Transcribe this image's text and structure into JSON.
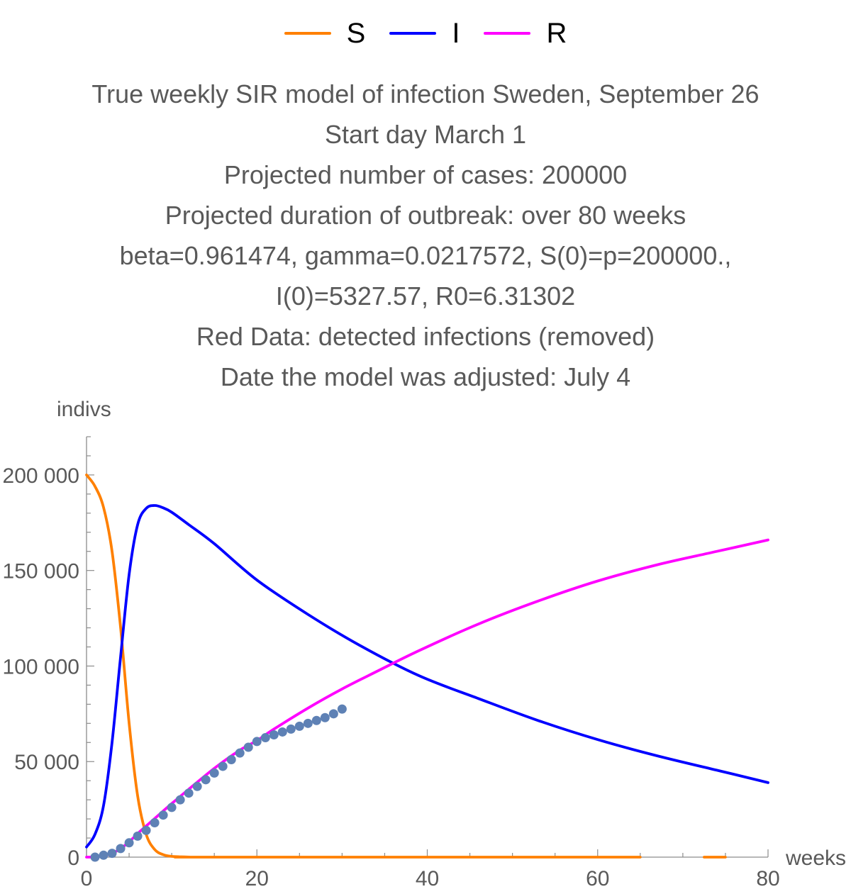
{
  "legend": [
    {
      "label": "S",
      "color": "#ff8000"
    },
    {
      "label": "I",
      "color": "#0000ff"
    },
    {
      "label": "R",
      "color": "#ff00ff"
    }
  ],
  "title_lines": [
    "True weekly SIR model of infection Sweden, September 26",
    "Start day March 1",
    "Projected number of cases: 200000",
    "Projected duration of outbreak: over 80 weeks",
    "beta=0.961474, gamma=0.0217572, S(0)=p=200000.,",
    "I(0)=5327.57, R0=6.31302",
    "Red Data: detected infections (removed)",
    "Date the model was adjusted: July 4"
  ],
  "chart_data": {
    "type": "line",
    "xlabel": "weeks",
    "ylabel": "indivs",
    "xlim": [
      0,
      80
    ],
    "ylim": [
      0,
      220000
    ],
    "x_ticks": [
      0,
      20,
      40,
      60,
      80
    ],
    "x_tick_labels": [
      "0",
      "20",
      "40",
      "60",
      "80"
    ],
    "y_ticks": [
      0,
      50000,
      100000,
      150000,
      200000
    ],
    "y_tick_labels": [
      "0",
      "50 000",
      "100 000",
      "150 000",
      "200 000"
    ],
    "legend_position": "top",
    "grid": false,
    "series": [
      {
        "name": "S",
        "color": "#ff8000",
        "points": [
          [
            0,
            200000
          ],
          [
            1,
            194000
          ],
          [
            2,
            183000
          ],
          [
            3,
            160000
          ],
          [
            4,
            120000
          ],
          [
            5,
            70000
          ],
          [
            6,
            32000
          ],
          [
            7,
            12000
          ],
          [
            8,
            4000
          ],
          [
            9,
            1300
          ],
          [
            10,
            400
          ],
          [
            12,
            50
          ],
          [
            15,
            0
          ],
          [
            65,
            0
          ]
        ]
      },
      {
        "name": "S",
        "color": "#ff8000",
        "points": [
          [
            72.5,
            0
          ],
          [
            75,
            0
          ]
        ]
      },
      {
        "name": "I",
        "color": "#0000ff",
        "points": [
          [
            0,
            5300
          ],
          [
            1,
            12000
          ],
          [
            2,
            27000
          ],
          [
            3,
            60000
          ],
          [
            4,
            105000
          ],
          [
            5,
            148000
          ],
          [
            6,
            174000
          ],
          [
            7,
            182500
          ],
          [
            8,
            184000
          ],
          [
            9,
            182800
          ],
          [
            10,
            180500
          ],
          [
            12,
            174000
          ],
          [
            15,
            164000
          ],
          [
            20,
            145000
          ],
          [
            26,
            127000
          ],
          [
            32,
            111000
          ],
          [
            39,
            95000
          ],
          [
            46,
            83000
          ],
          [
            53,
            71500
          ],
          [
            60,
            61500
          ],
          [
            67,
            53000
          ],
          [
            74,
            45500
          ],
          [
            80,
            39000
          ]
        ]
      },
      {
        "name": "R",
        "color": "#ff00ff",
        "points": [
          [
            0,
            0
          ],
          [
            1,
            100
          ],
          [
            2,
            700
          ],
          [
            3,
            2000
          ],
          [
            4,
            4500
          ],
          [
            5,
            8000
          ],
          [
            6,
            12300
          ],
          [
            7,
            16300
          ],
          [
            8,
            20200
          ],
          [
            10,
            28000
          ],
          [
            12,
            35500
          ],
          [
            15,
            46500
          ],
          [
            18,
            56000
          ],
          [
            20,
            61000
          ],
          [
            22,
            67000
          ],
          [
            26,
            78000
          ],
          [
            30,
            88000
          ],
          [
            34,
            97000
          ],
          [
            39,
            108000
          ],
          [
            46,
            122000
          ],
          [
            53,
            134000
          ],
          [
            60,
            144500
          ],
          [
            67,
            153000
          ],
          [
            74,
            160000
          ],
          [
            80,
            166000
          ]
        ]
      },
      {
        "name": "Red Data",
        "color": "#5e81b5",
        "marker": "dot",
        "points": [
          [
            1,
            0
          ],
          [
            2,
            1000
          ],
          [
            3,
            2000
          ],
          [
            4,
            4500
          ],
          [
            5,
            7500
          ],
          [
            6,
            11000
          ],
          [
            7,
            14000
          ],
          [
            8,
            18000
          ],
          [
            9,
            22000
          ],
          [
            10,
            26000
          ],
          [
            11,
            30000
          ],
          [
            12,
            33500
          ],
          [
            13,
            37000
          ],
          [
            14,
            40500
          ],
          [
            15,
            44000
          ],
          [
            16,
            47500
          ],
          [
            17,
            51000
          ],
          [
            18,
            54500
          ],
          [
            19,
            57500
          ],
          [
            20,
            60500
          ],
          [
            21,
            62500
          ],
          [
            22,
            64000
          ],
          [
            23,
            65500
          ],
          [
            24,
            67000
          ],
          [
            25,
            68500
          ],
          [
            26,
            70000
          ],
          [
            27,
            71500
          ],
          [
            28,
            73000
          ],
          [
            29,
            75000
          ],
          [
            30,
            77500
          ]
        ]
      }
    ]
  }
}
